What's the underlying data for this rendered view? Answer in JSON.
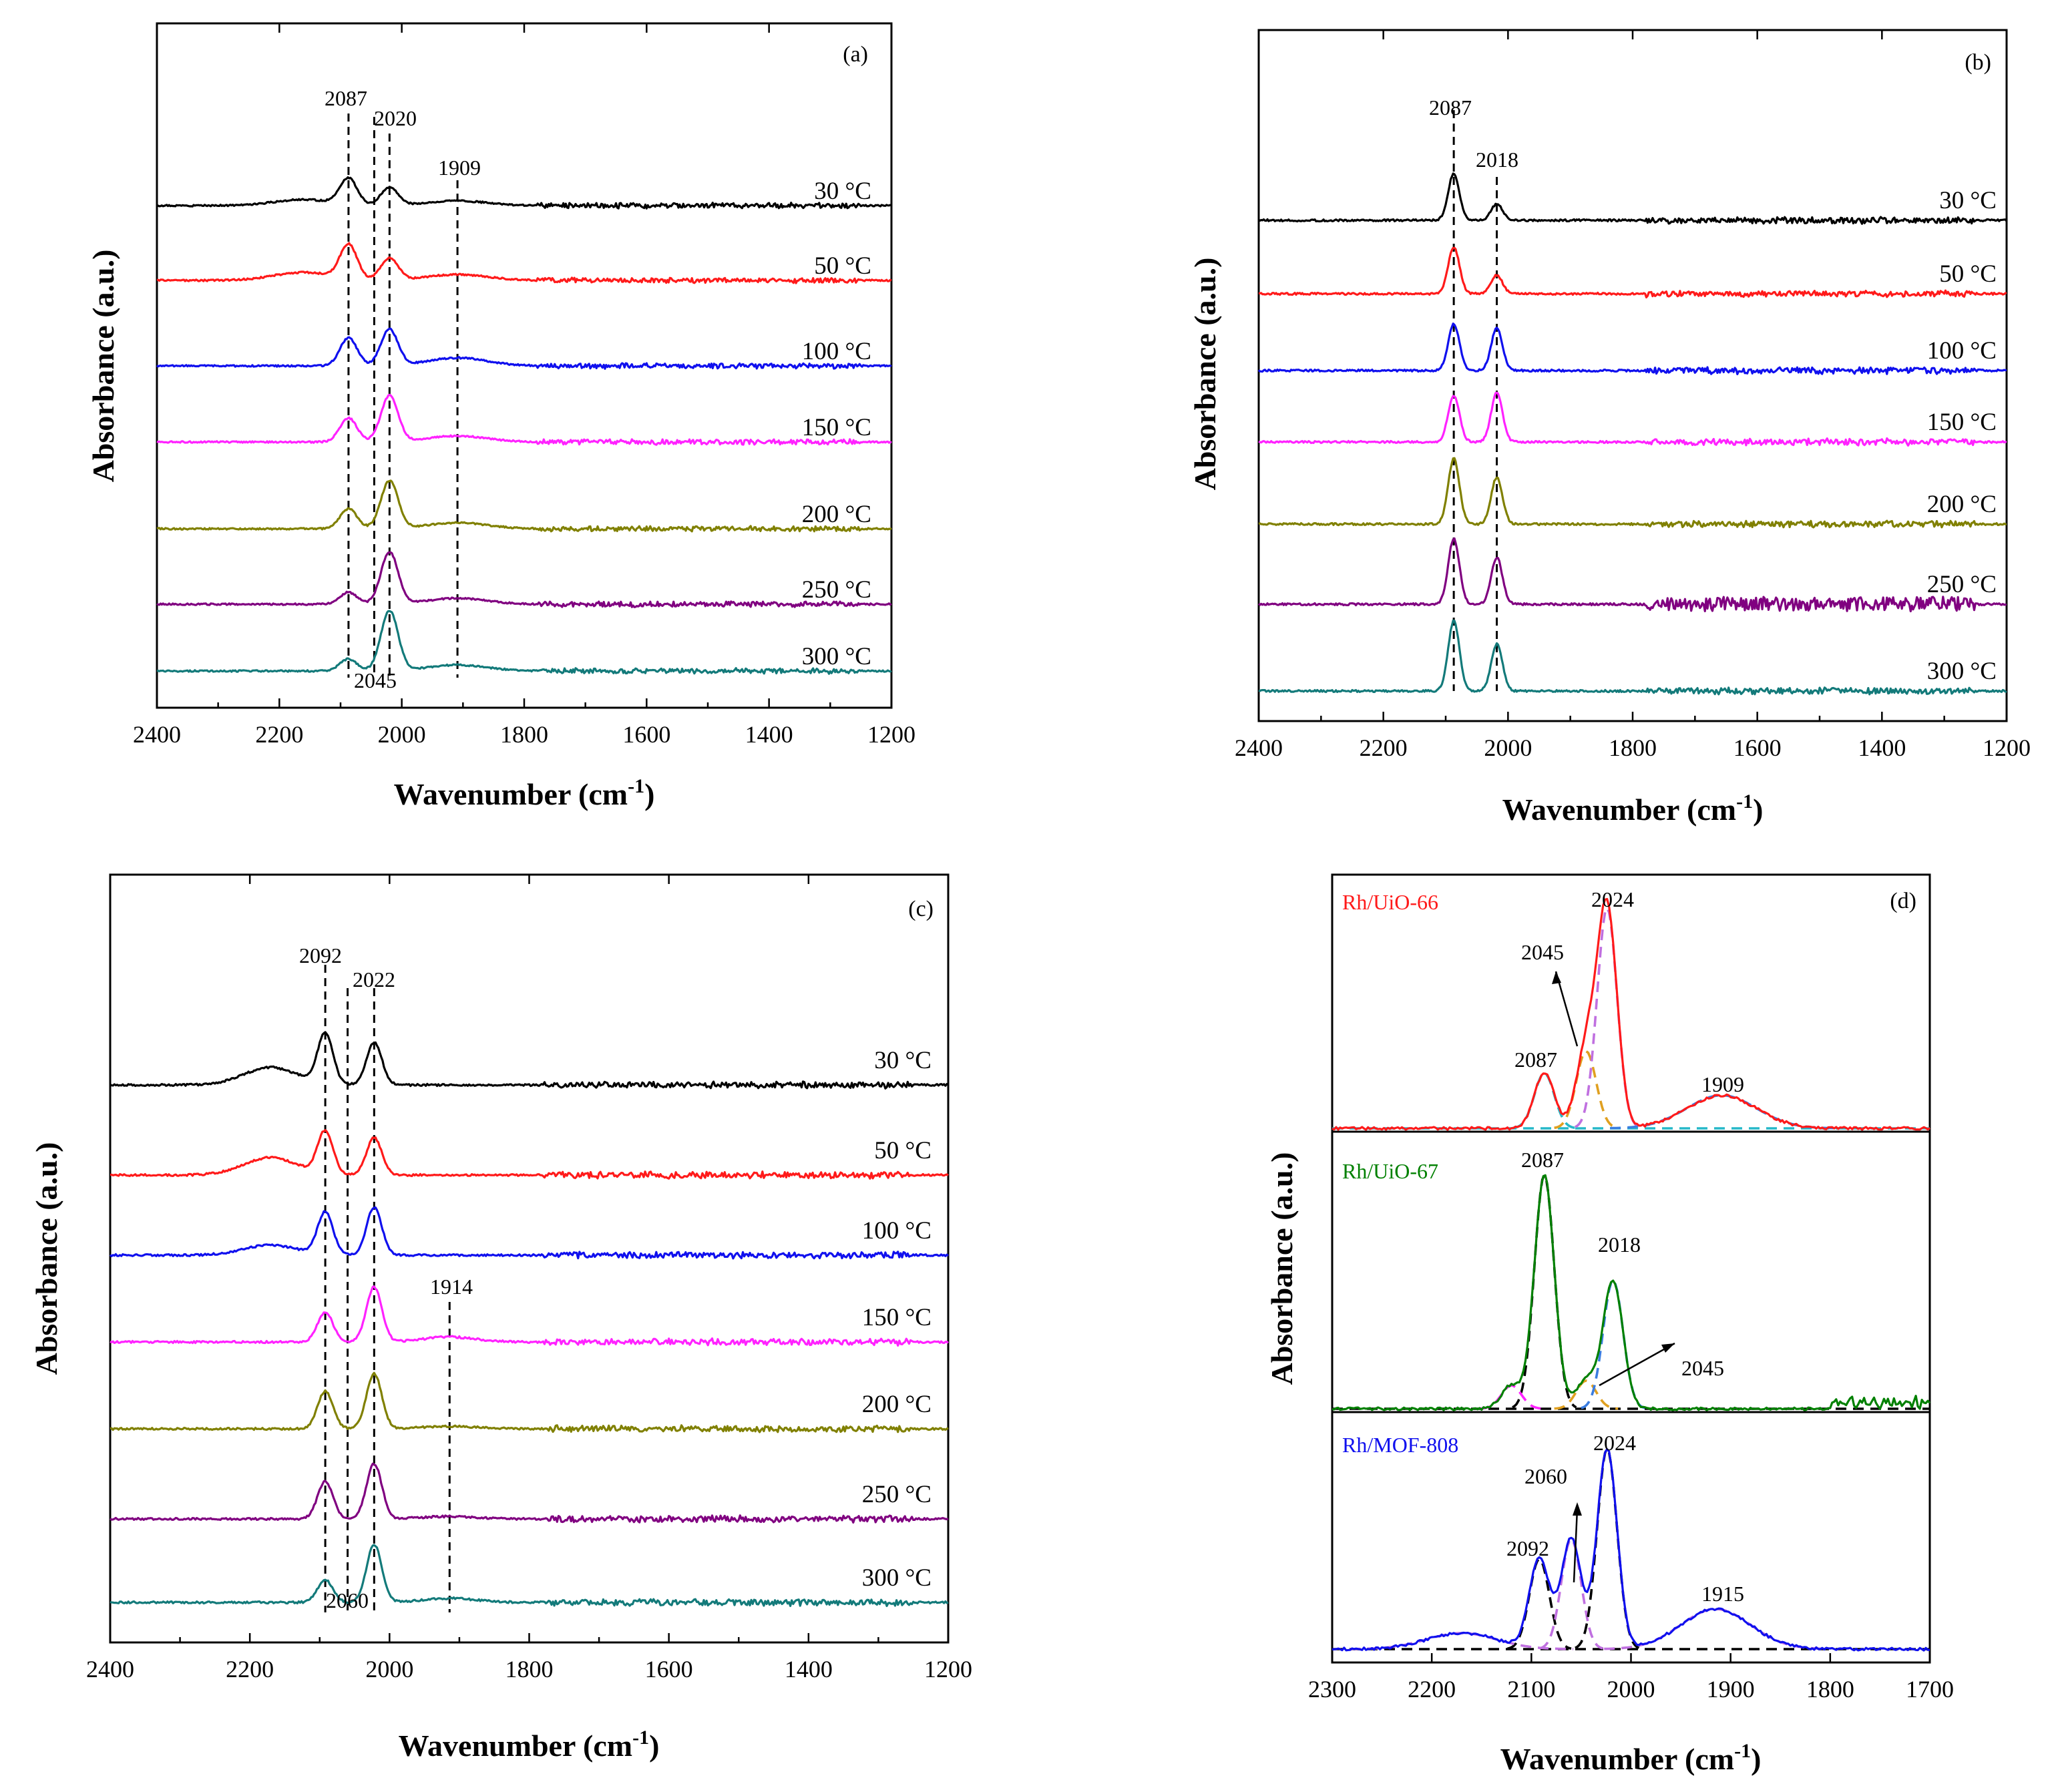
{
  "figure": {
    "x_title": "Wavenumber (cm",
    "x_title_sup": "-1",
    "x_title_close": ")",
    "y_title": "Absorbance (a.u.)",
    "temperature_unit": "°C"
  },
  "colors": {
    "30": "#000000",
    "50": "#ff1a1a",
    "100": "#1010ee",
    "150": "#ff22ff",
    "200": "#808000",
    "250": "#800080",
    "300": "#137a7a"
  },
  "chart_data": [
    {
      "panel": "(a)",
      "type": "line",
      "xlabel": "Wavenumber (cm-1)",
      "ylabel": "Absorbance (a.u.)",
      "xlim": [
        2400,
        1200
      ],
      "x_ticks": [
        "2400",
        "2200",
        "2000",
        "1800",
        "1600",
        "1400",
        "1200"
      ],
      "reference_lines": [
        2087,
        2045,
        2020,
        1909
      ],
      "annotations": [
        {
          "text": "2087",
          "x": 2087
        },
        {
          "text": "2020",
          "x": 2020
        },
        {
          "text": "1909",
          "x": 1909
        },
        {
          "text": "2045",
          "x": 2045
        }
      ],
      "series": [
        {
          "name": "30 °C",
          "peaks": [
            [
              2087,
              0.65
            ],
            [
              2020,
              0.45
            ],
            [
              2160,
              0.15
            ],
            [
              1909,
              0.12
            ]
          ]
        },
        {
          "name": "50 °C",
          "peaks": [
            [
              2087,
              0.85
            ],
            [
              2020,
              0.55
            ],
            [
              2160,
              0.2
            ],
            [
              1909,
              0.15
            ]
          ]
        },
        {
          "name": "100 °C",
          "peaks": [
            [
              2087,
              0.7
            ],
            [
              2020,
              0.9
            ],
            [
              1909,
              0.2
            ]
          ]
        },
        {
          "name": "150 °C",
          "peaks": [
            [
              2087,
              0.6
            ],
            [
              2020,
              1.15
            ],
            [
              1909,
              0.15
            ]
          ]
        },
        {
          "name": "200 °C",
          "peaks": [
            [
              2087,
              0.5
            ],
            [
              2020,
              1.2
            ],
            [
              1909,
              0.15
            ]
          ]
        },
        {
          "name": "250 °C",
          "peaks": [
            [
              2087,
              0.3
            ],
            [
              2020,
              1.3
            ],
            [
              1909,
              0.15
            ]
          ]
        },
        {
          "name": "300 °C",
          "peaks": [
            [
              2087,
              0.3
            ],
            [
              2020,
              1.5
            ],
            [
              1909,
              0.15
            ]
          ]
        }
      ]
    },
    {
      "panel": "(b)",
      "type": "line",
      "xlabel": "Wavenumber (cm-1)",
      "ylabel": "Absorbance (a.u.)",
      "xlim": [
        2400,
        1200
      ],
      "x_ticks": [
        "2400",
        "2200",
        "2000",
        "1800",
        "1600",
        "1400",
        "1200"
      ],
      "reference_lines": [
        2087,
        2018
      ],
      "annotations": [
        {
          "text": "2087",
          "x": 2087
        },
        {
          "text": "2018",
          "x": 2018
        }
      ],
      "series": [
        {
          "name": "30 °C",
          "peaks": [
            [
              2087,
              1.0
            ],
            [
              2018,
              0.35
            ]
          ]
        },
        {
          "name": "50 °C",
          "peaks": [
            [
              2087,
              1.0
            ],
            [
              2018,
              0.4
            ]
          ]
        },
        {
          "name": "100 °C",
          "peaks": [
            [
              2087,
              1.0
            ],
            [
              2018,
              0.9
            ]
          ]
        },
        {
          "name": "150 °C",
          "peaks": [
            [
              2087,
              1.0
            ],
            [
              2018,
              1.05
            ]
          ]
        },
        {
          "name": "200 °C",
          "peaks": [
            [
              2087,
              1.4
            ],
            [
              2018,
              1.0
            ]
          ]
        },
        {
          "name": "250 °C",
          "peaks": [
            [
              2087,
              1.4
            ],
            [
              2018,
              1.0
            ]
          ]
        },
        {
          "name": "300 °C",
          "peaks": [
            [
              2087,
              1.5
            ],
            [
              2018,
              1.0
            ]
          ]
        }
      ]
    },
    {
      "panel": "(c)",
      "type": "line",
      "xlabel": "Wavenumber (cm-1)",
      "ylabel": "Absorbance (a.u.)",
      "xlim": [
        2400,
        1200
      ],
      "x_ticks": [
        "2400",
        "2200",
        "2000",
        "1800",
        "1600",
        "1400",
        "1200"
      ],
      "reference_lines": [
        2092,
        2060,
        2022,
        1914
      ],
      "annotations": [
        {
          "text": "2092",
          "x": 2092
        },
        {
          "text": "2022",
          "x": 2022
        },
        {
          "text": "1914",
          "x": 1914
        },
        {
          "text": "2060",
          "x": 2060
        }
      ],
      "series": [
        {
          "name": "30 °C",
          "peaks": [
            [
              2092,
              1.0
            ],
            [
              2022,
              0.85
            ],
            [
              2170,
              0.35
            ]
          ]
        },
        {
          "name": "50 °C",
          "peaks": [
            [
              2092,
              0.85
            ],
            [
              2022,
              0.75
            ],
            [
              2170,
              0.35
            ]
          ]
        },
        {
          "name": "100 °C",
          "peaks": [
            [
              2092,
              0.85
            ],
            [
              2022,
              0.95
            ],
            [
              2170,
              0.2
            ]
          ]
        },
        {
          "name": "150 °C",
          "peaks": [
            [
              2092,
              0.6
            ],
            [
              2022,
              1.1
            ],
            [
              1914,
              0.1
            ]
          ]
        },
        {
          "name": "200 °C",
          "peaks": [
            [
              2092,
              0.75
            ],
            [
              2022,
              1.1
            ],
            [
              1914,
              0.05
            ]
          ]
        },
        {
          "name": "250 °C",
          "peaks": [
            [
              2092,
              0.75
            ],
            [
              2022,
              1.1
            ],
            [
              1914,
              0.05
            ]
          ]
        },
        {
          "name": "300 °C",
          "peaks": [
            [
              2092,
              0.45
            ],
            [
              2022,
              1.15
            ],
            [
              1914,
              0.08
            ]
          ]
        }
      ]
    },
    {
      "panel": "(d)",
      "type": "line",
      "xlabel": "Wavenumber (cm-1)",
      "ylabel": "Absorbance (a.u.)",
      "xlim": [
        2300,
        1700
      ],
      "x_ticks": [
        "2300",
        "2200",
        "2100",
        "2000",
        "1900",
        "1800",
        "1700"
      ],
      "samples": [
        {
          "name": "Rh/UiO-66",
          "color": "#ff1a1a",
          "labels": [
            "2024",
            "2045",
            "2087",
            "1909"
          ],
          "peaks": [
            [
              2087,
              0.25
            ],
            [
              2045,
              0.35
            ],
            [
              2024,
              1.0
            ],
            [
              1909,
              0.15
            ]
          ]
        },
        {
          "name": "Rh/UiO-67",
          "color": "#008000",
          "labels": [
            "2087",
            "2018",
            "2045"
          ],
          "peaks": [
            [
              2087,
              1.0
            ],
            [
              2045,
              0.12
            ],
            [
              2018,
              0.55
            ],
            [
              2120,
              0.1
            ]
          ]
        },
        {
          "name": "Rh/MOF-808",
          "color": "#1010ee",
          "labels": [
            "2024",
            "2060",
            "2092",
            "1915"
          ],
          "peaks": [
            [
              2092,
              0.45
            ],
            [
              2060,
              0.55
            ],
            [
              2024,
              1.0
            ],
            [
              1915,
              0.2
            ],
            [
              2170,
              0.08
            ]
          ]
        }
      ]
    }
  ]
}
